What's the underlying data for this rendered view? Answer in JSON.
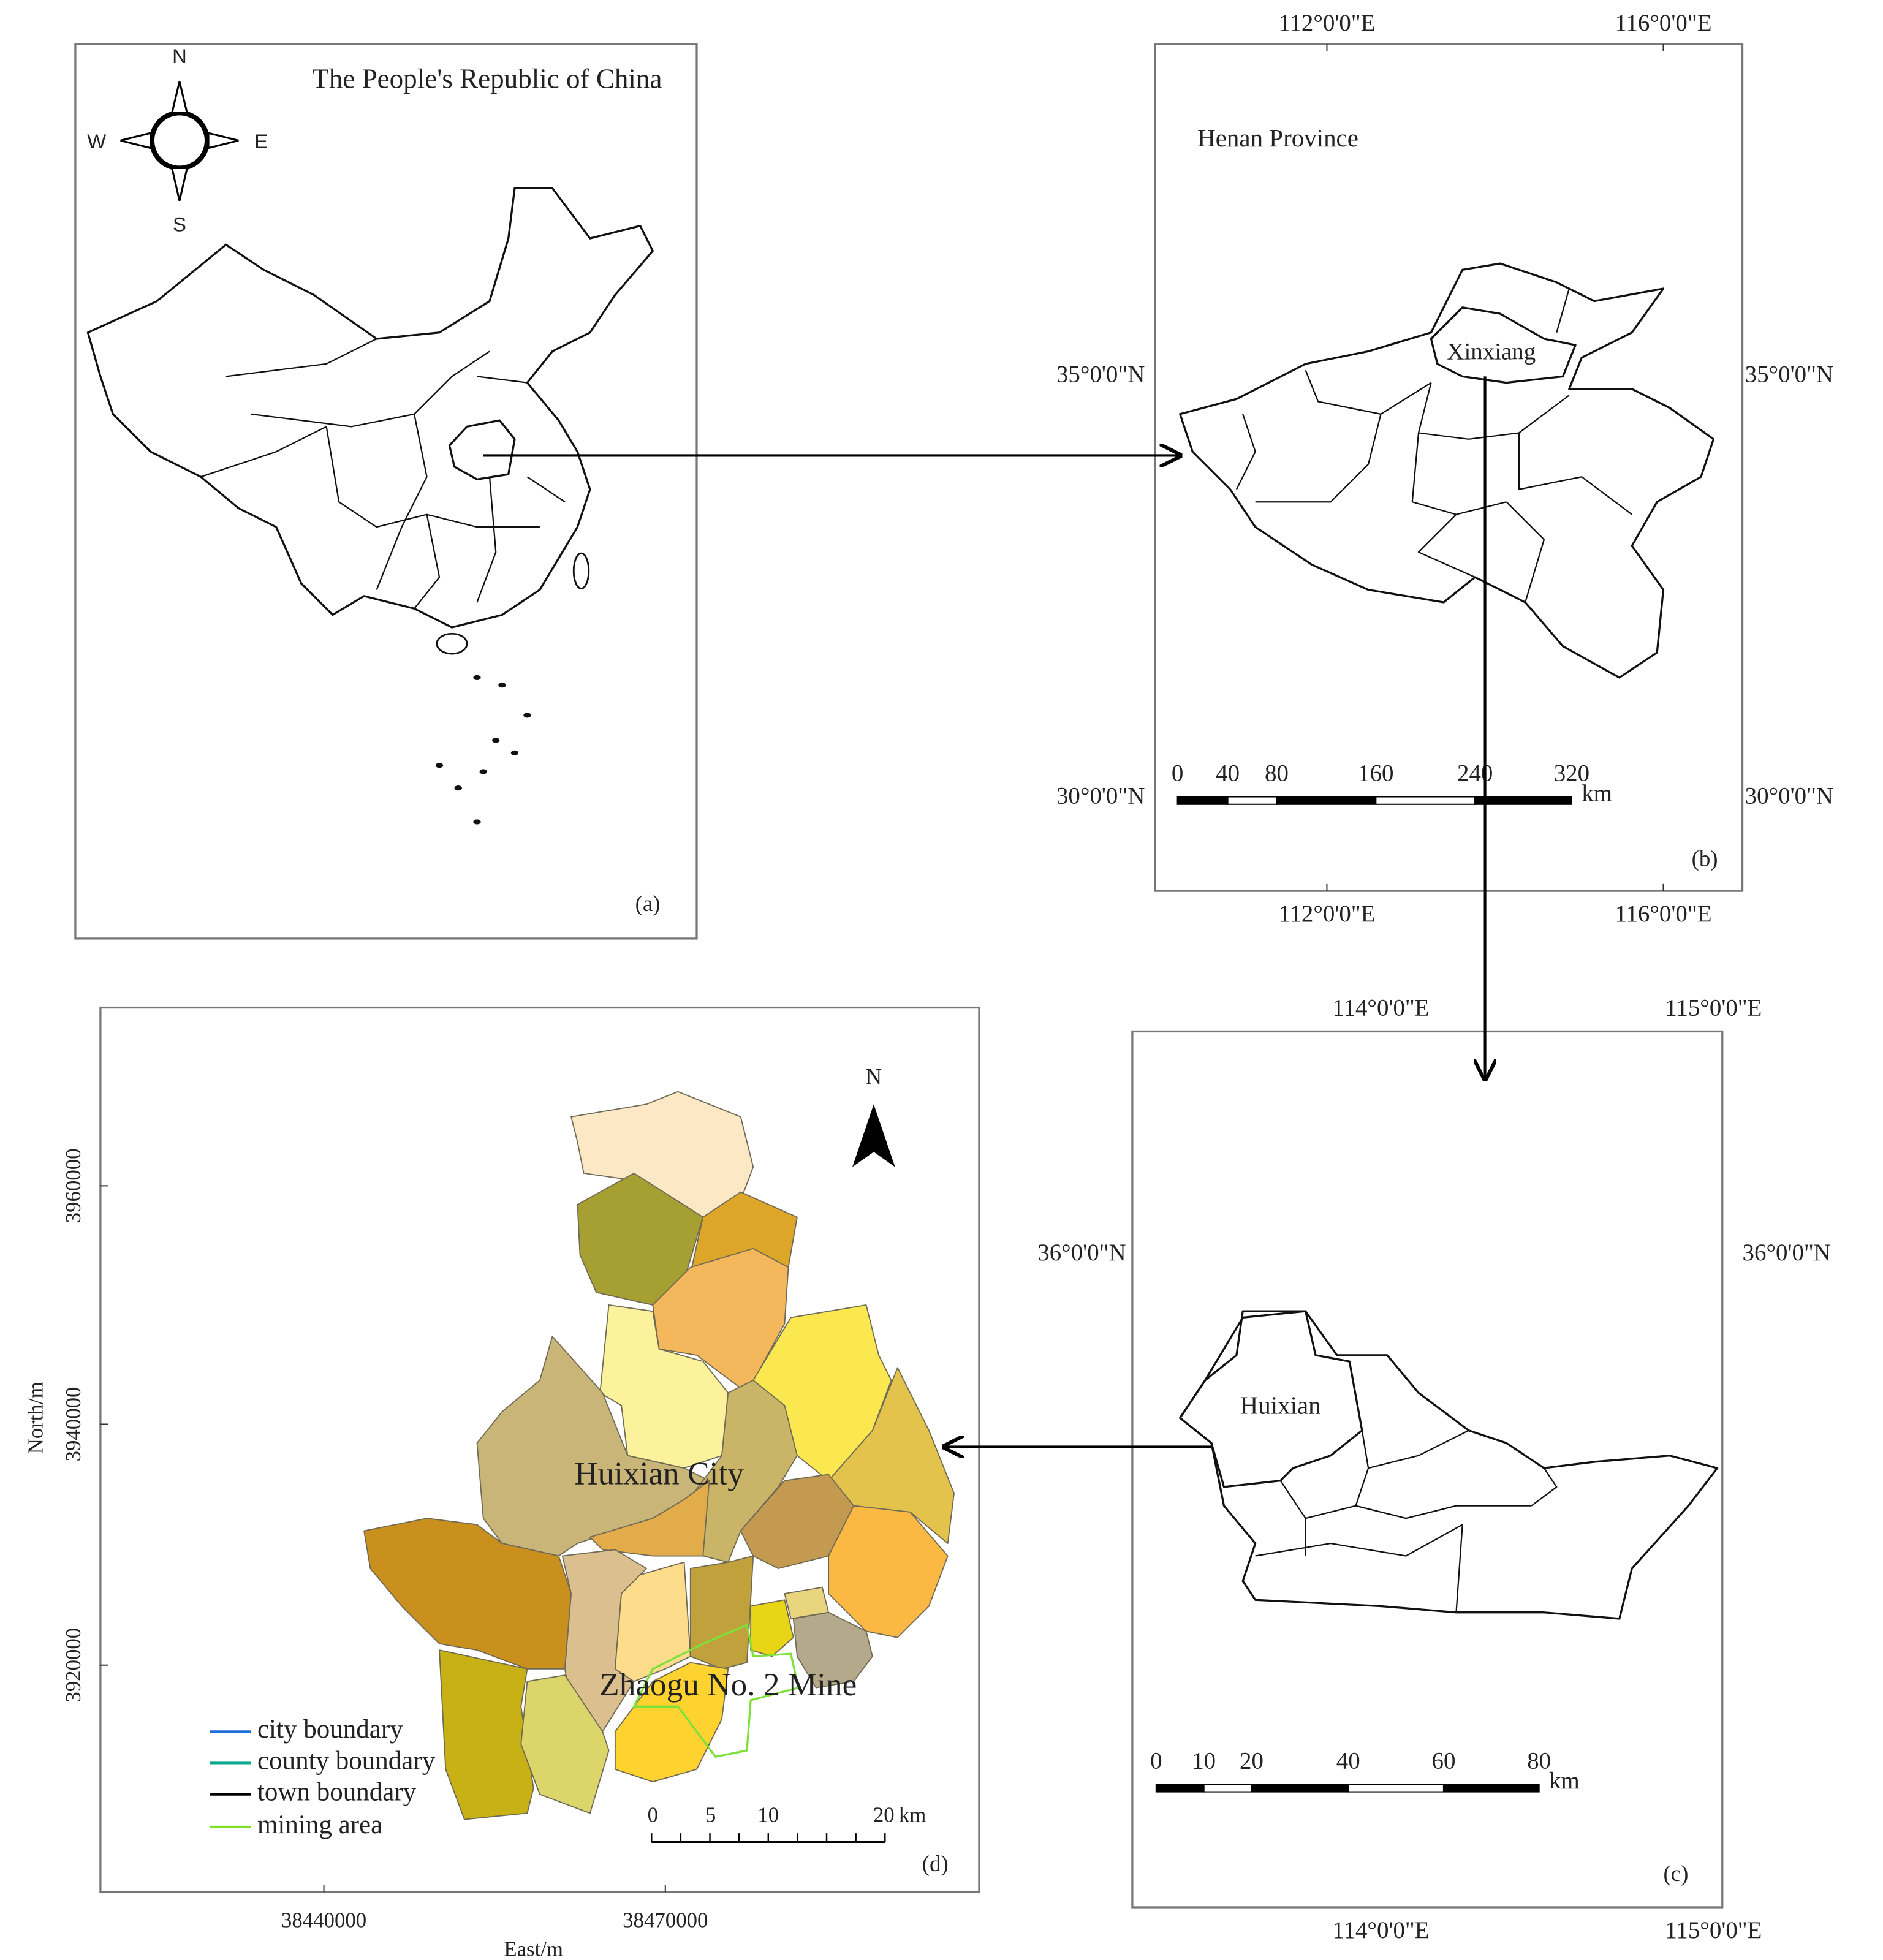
{
  "panel_a": {
    "title": "The People's Republic of China",
    "compass": [
      "N",
      "S",
      "E",
      "W"
    ],
    "label": "(a)"
  },
  "panel_b": {
    "title": "Henan Province",
    "highlight": "Xinxiang",
    "top_ticks": [
      "112°0'0\"E",
      "116°0'0\"E"
    ],
    "bottom_ticks": [
      "112°0'0\"E",
      "116°0'0\"E"
    ],
    "left_ticks": [
      "35°0'0\"N",
      "30°0'0\"N"
    ],
    "right_ticks": [
      "35°0'0\"N",
      "30°0'0\"N"
    ],
    "scale": [
      0,
      40,
      80,
      160,
      240,
      320
    ],
    "scale_unit": "km",
    "label": "(b)"
  },
  "panel_c": {
    "highlight": "Huixian",
    "top_ticks": [
      "114°0'0\"E",
      "115°0'0\"E"
    ],
    "bottom_ticks": [
      "114°0'0\"E",
      "115°0'0\"E"
    ],
    "left_ticks": [
      "36°0'0\"N"
    ],
    "right_ticks": [
      "36°0'0\"N"
    ],
    "scale": [
      0,
      10,
      20,
      40,
      60,
      80
    ],
    "scale_unit": "km",
    "label": "(c)"
  },
  "panel_d": {
    "y_ticks": [
      3960000,
      3940000,
      3920000
    ],
    "y_label": "North/m",
    "x_ticks": [
      38440000,
      38470000
    ],
    "x_label": "East/m",
    "north": "N",
    "city": "Huixian City",
    "mine": "Zhaogu No. 2 Mine",
    "legend": [
      "city boundary",
      "county boundary",
      "town boundary",
      "mining area"
    ],
    "scale": [
      0,
      5,
      10,
      20
    ],
    "scale_unit": "km",
    "label": "(d)"
  }
}
